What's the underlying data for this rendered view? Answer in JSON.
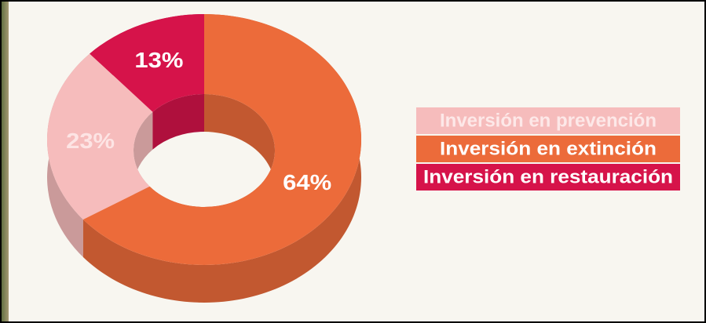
{
  "chart_data": {
    "type": "pie",
    "categories": [
      "Inversión en prevención",
      "Inversión en extinción",
      "Inversión en restauración"
    ],
    "values": [
      23,
      64,
      13
    ],
    "value_labels": [
      "23%",
      "64%",
      "13%"
    ],
    "colors": [
      "#f6bcbc",
      "#ec6b3a",
      "#d6134a"
    ],
    "legend": "right"
  }
}
